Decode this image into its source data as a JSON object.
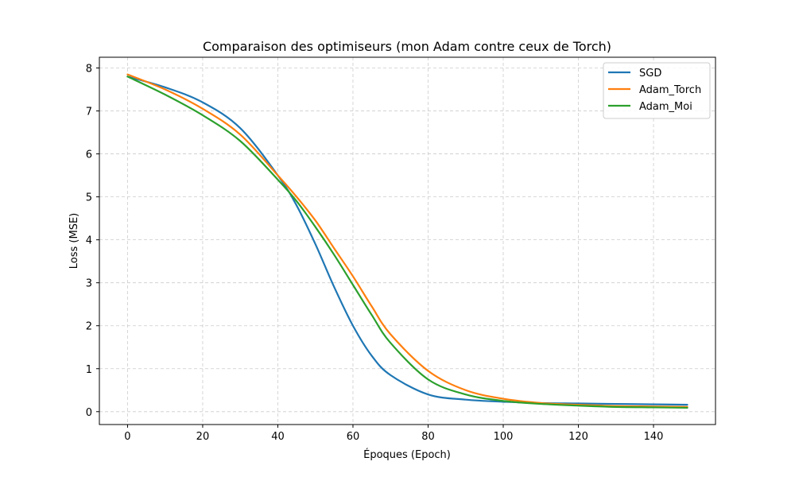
{
  "chart_data": {
    "type": "line",
    "title": "Comparaison des optimiseurs (mon Adam contre ceux de Torch)",
    "xlabel": "Époques (Epoch)",
    "ylabel": "Loss (MSE)",
    "xlim": [
      -7.5,
      156.5
    ],
    "ylim": [
      -0.3,
      8.25
    ],
    "xticks": [
      0,
      20,
      40,
      60,
      80,
      100,
      120,
      140
    ],
    "yticks": [
      0,
      1,
      2,
      3,
      4,
      5,
      6,
      7,
      8
    ],
    "grid": true,
    "grid_style": "dashed",
    "legend_position": "top-right",
    "x": [
      0,
      10,
      20,
      30,
      40,
      45,
      50,
      55,
      60,
      65,
      70,
      80,
      90,
      100,
      110,
      120,
      130,
      140,
      149
    ],
    "series": [
      {
        "name": "SGD",
        "color": "#1f77b4",
        "values": [
          7.8,
          7.55,
          7.2,
          6.6,
          5.5,
          4.8,
          3.9,
          2.9,
          2.0,
          1.3,
          0.85,
          0.4,
          0.28,
          0.23,
          0.2,
          0.19,
          0.18,
          0.17,
          0.16
        ]
      },
      {
        "name": "Adam_Torch",
        "color": "#ff7f0e",
        "values": [
          7.85,
          7.5,
          7.05,
          6.45,
          5.5,
          5.0,
          4.45,
          3.8,
          3.15,
          2.45,
          1.8,
          0.95,
          0.5,
          0.3,
          0.2,
          0.16,
          0.13,
          0.12,
          0.11
        ]
      },
      {
        "name": "Adam_Moi",
        "color": "#2ca02c",
        "values": [
          7.8,
          7.38,
          6.9,
          6.3,
          5.4,
          4.9,
          4.3,
          3.65,
          2.95,
          2.25,
          1.6,
          0.75,
          0.4,
          0.25,
          0.18,
          0.14,
          0.11,
          0.1,
          0.09
        ]
      }
    ]
  }
}
